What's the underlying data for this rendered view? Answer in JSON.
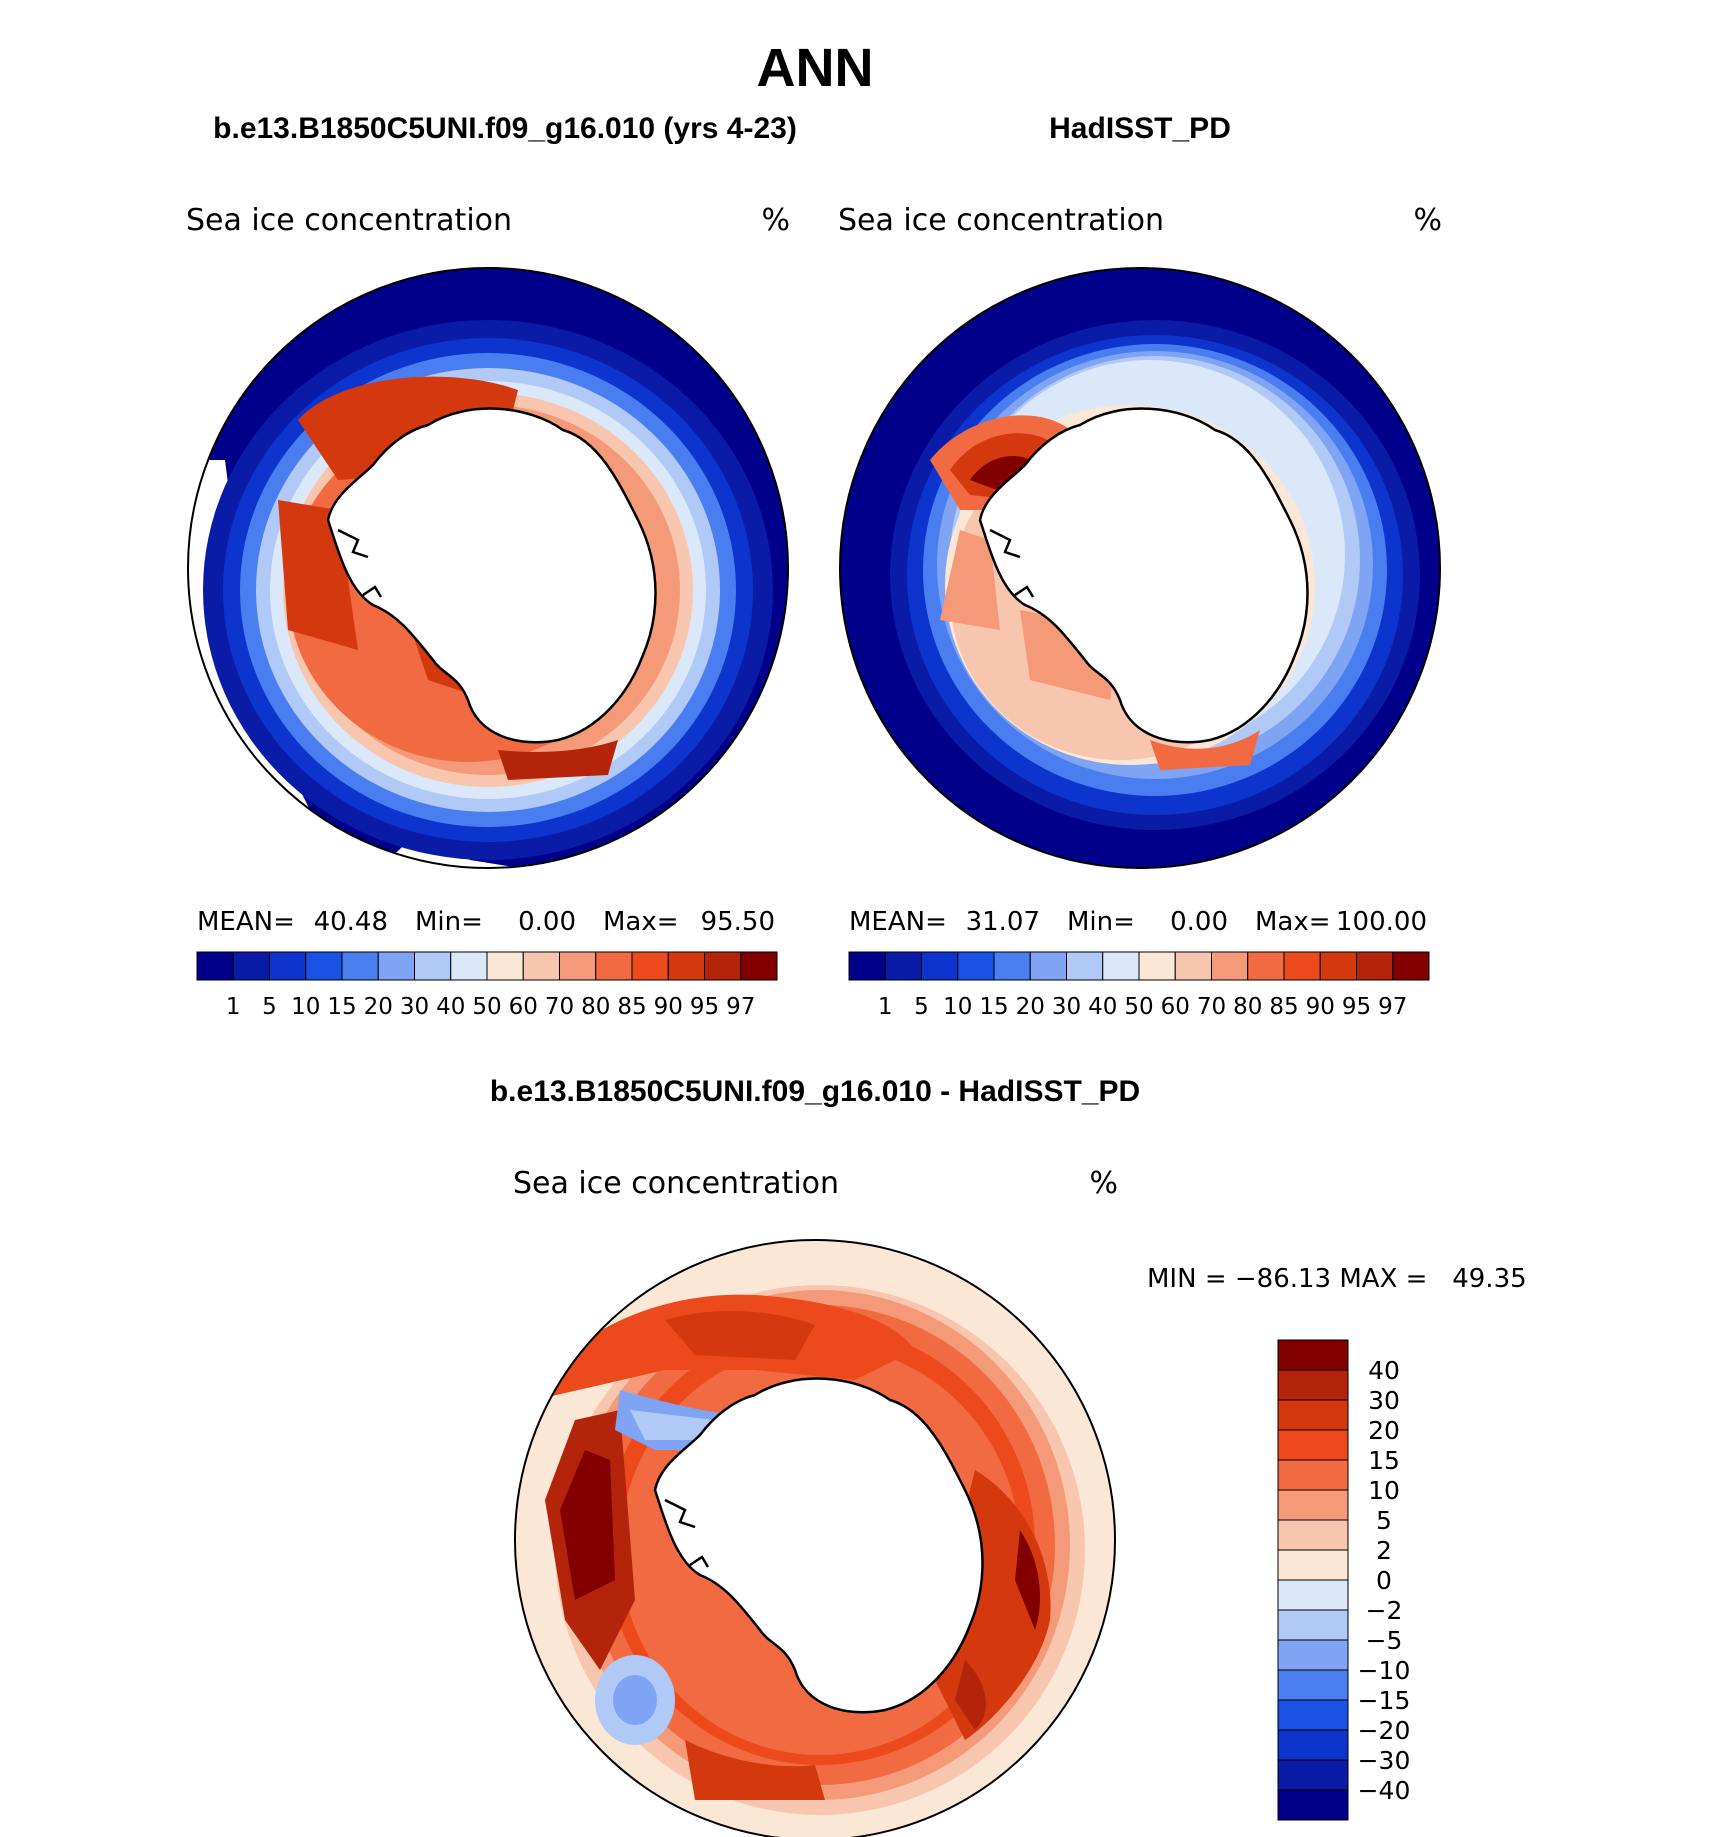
{
  "page": {
    "season": "ANN"
  },
  "panels": [
    {
      "id": "model",
      "header": "b.e13.B1850C5UNI.f09_g16.010 (yrs 4-23)",
      "field_name": "Sea ice concentration",
      "units": "%",
      "stats": {
        "mean_label": "MEAN=",
        "mean_value": "40.48",
        "min_label": "Min=",
        "min_value": "0.00",
        "max_label": "Max=",
        "max_value": "95.50"
      }
    },
    {
      "id": "obs",
      "header": "HadISST_PD",
      "field_name": "Sea ice concentration",
      "units": "%",
      "stats": {
        "mean_label": "MEAN=",
        "mean_value": "31.07",
        "min_label": "Min=",
        "min_value": "0.00",
        "max_label": "Max=",
        "max_value": "100.00"
      }
    },
    {
      "id": "diff",
      "header": "b.e13.B1850C5UNI.f09_g16.010 - HadISST_PD",
      "field_name": "Sea ice concentration",
      "units": "%",
      "minmax_text": "MIN = −86.13 MAX =   49.35"
    }
  ],
  "colorbar_abs": {
    "levels": [
      "1",
      "5",
      "10",
      "15",
      "20",
      "30",
      "40",
      "50",
      "60",
      "70",
      "80",
      "85",
      "90",
      "95",
      "97"
    ],
    "colors": [
      "#00008a",
      "#0a1ba8",
      "#0d34cc",
      "#1a52e6",
      "#4a7ef0",
      "#7ea4f3",
      "#b0c9f7",
      "#dbe8fa",
      "#fbe7d6",
      "#f8c6ae",
      "#f59a78",
      "#f26a42",
      "#ec4a1c",
      "#d4380e",
      "#b4240a",
      "#820000"
    ]
  },
  "colorbar_diff": {
    "levels": [
      "40",
      "30",
      "20",
      "15",
      "10",
      "5",
      "2",
      "0",
      "−2",
      "−5",
      "−10",
      "−15",
      "−20",
      "−30",
      "−40"
    ],
    "colors": [
      "#820000",
      "#b4240a",
      "#d4380e",
      "#ec4a1c",
      "#f26a42",
      "#f59a78",
      "#f8c6ae",
      "#fbe7d6",
      "#dbe8fa",
      "#b0c9f7",
      "#7ea4f3",
      "#4a7ef0",
      "#1a52e6",
      "#0d34cc",
      "#0a1ba8",
      "#00008a"
    ]
  }
}
